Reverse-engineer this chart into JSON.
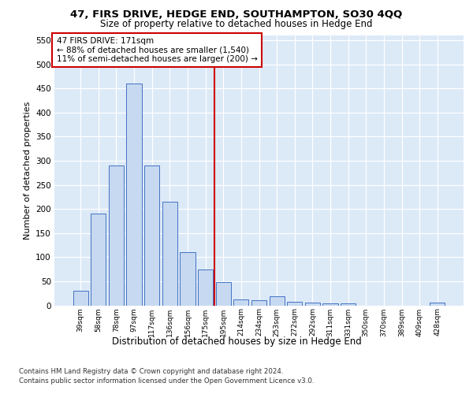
{
  "title": "47, FIRS DRIVE, HEDGE END, SOUTHAMPTON, SO30 4QQ",
  "subtitle": "Size of property relative to detached houses in Hedge End",
  "xlabel": "Distribution of detached houses by size in Hedge End",
  "ylabel": "Number of detached properties",
  "categories": [
    "39sqm",
    "58sqm",
    "78sqm",
    "97sqm",
    "117sqm",
    "136sqm",
    "156sqm",
    "175sqm",
    "195sqm",
    "214sqm",
    "234sqm",
    "253sqm",
    "272sqm",
    "292sqm",
    "311sqm",
    "331sqm",
    "350sqm",
    "370sqm",
    "389sqm",
    "409sqm",
    "428sqm"
  ],
  "values": [
    30,
    190,
    290,
    460,
    290,
    215,
    110,
    75,
    48,
    13,
    10,
    18,
    8,
    5,
    4,
    4,
    0,
    0,
    0,
    0,
    5
  ],
  "bar_color": "#c6d9f0",
  "bar_edge_color": "#4472c4",
  "vline_color": "#cc0000",
  "vline_x": 7.5,
  "annotation_text": "47 FIRS DRIVE: 171sqm\n← 88% of detached houses are smaller (1,540)\n11% of semi-detached houses are larger (200) →",
  "annotation_box_edgecolor": "#cc0000",
  "ylim_max": 560,
  "yticks": [
    0,
    50,
    100,
    150,
    200,
    250,
    300,
    350,
    400,
    450,
    500,
    550
  ],
  "background_color": "#dce9f7",
  "footer_line1": "Contains HM Land Registry data © Crown copyright and database right 2024.",
  "footer_line2": "Contains public sector information licensed under the Open Government Licence v3.0."
}
